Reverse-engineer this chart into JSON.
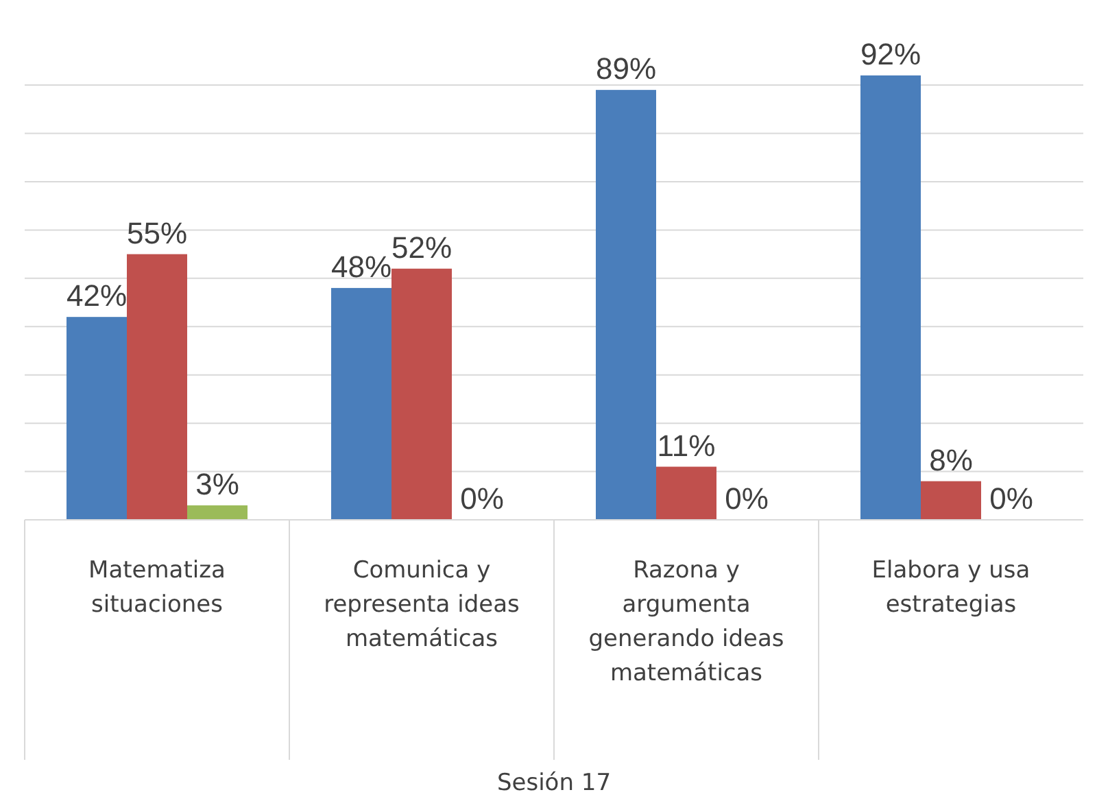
{
  "chart_data": {
    "type": "bar",
    "xlabel": "Sesión 17",
    "categories": [
      "Matematiza situaciones",
      "Comunica y representa ideas matemáticas",
      "Razona y argumenta generando ideas matemáticas",
      "Elabora y usa estrategias"
    ],
    "series": [
      {
        "color": "#4a7ebb",
        "values": [
          42,
          48,
          89,
          92
        ],
        "value_labels": [
          "42%",
          "48%",
          "89%",
          "92%"
        ]
      },
      {
        "color": "#c0504d",
        "values": [
          55,
          52,
          11,
          8
        ],
        "value_labels": [
          "55%",
          "52%",
          "11%",
          "8%"
        ]
      },
      {
        "color": "#9bbb59",
        "values": [
          3,
          0,
          0,
          0
        ],
        "value_labels": [
          "3%",
          "0%",
          "0%",
          "0%"
        ]
      }
    ],
    "grid": "y",
    "tick_labels": "x"
  }
}
